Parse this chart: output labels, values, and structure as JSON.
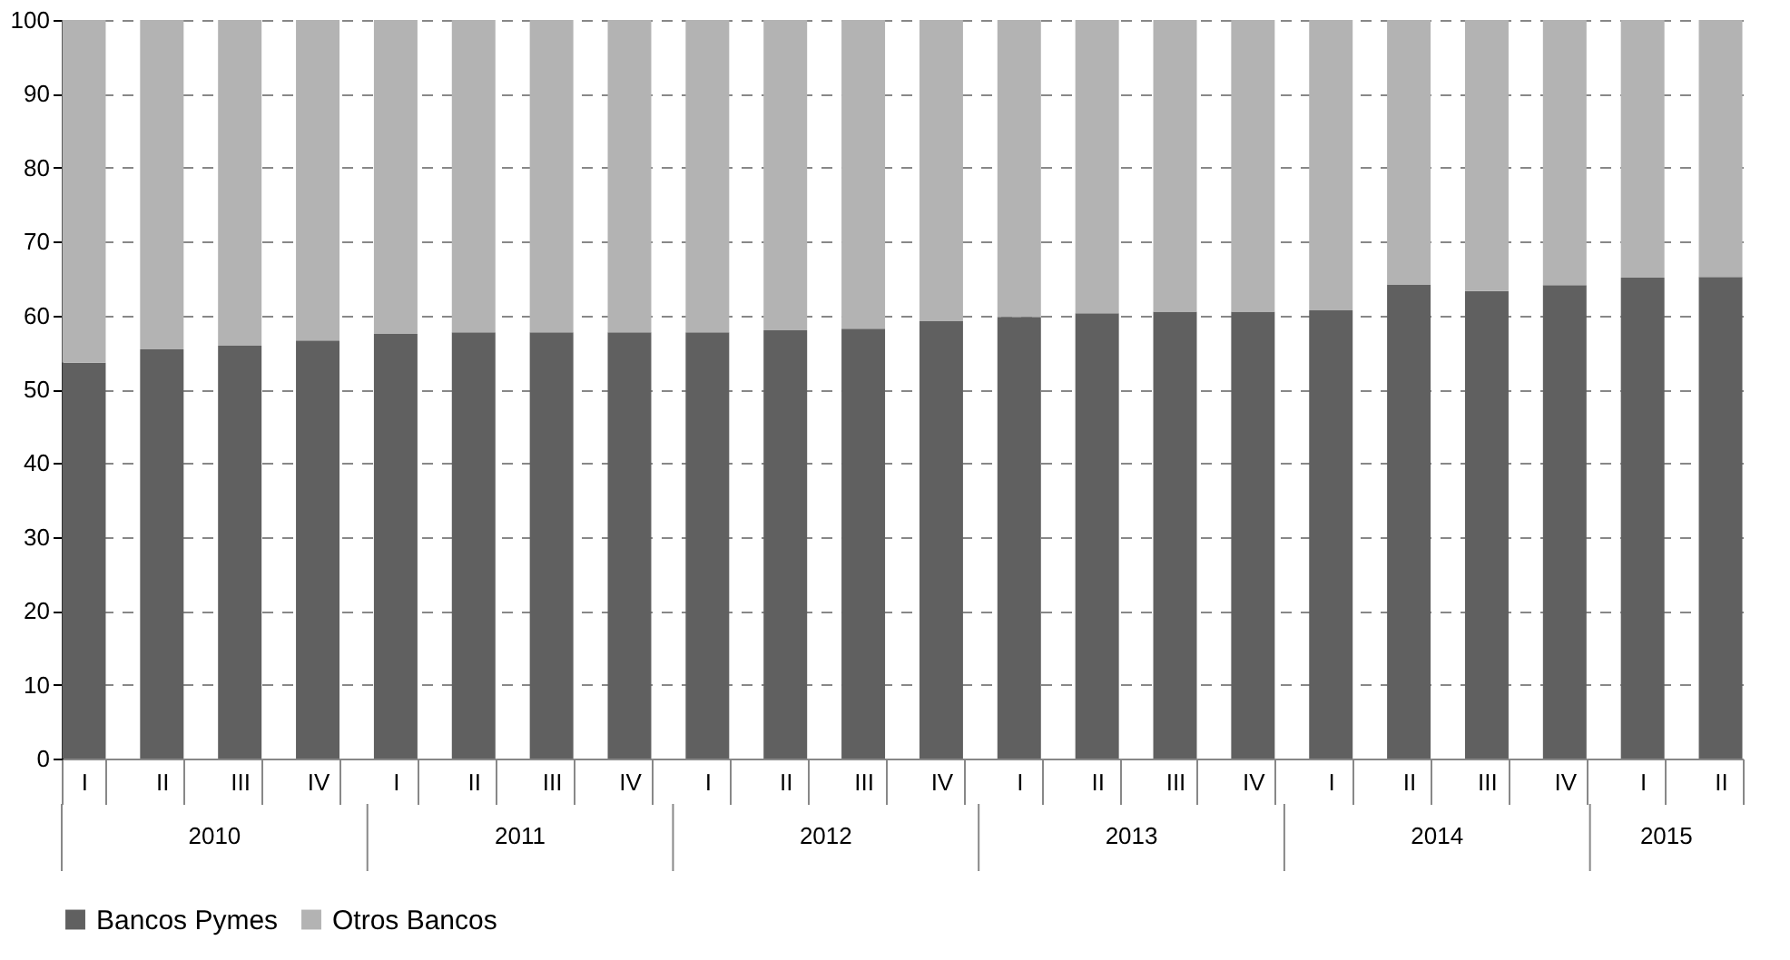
{
  "chart_data": {
    "type": "bar",
    "stacked": true,
    "categories": [
      "I",
      "II",
      "III",
      "IV",
      "I",
      "II",
      "III",
      "IV",
      "I",
      "II",
      "III",
      "IV",
      "I",
      "II",
      "III",
      "IV",
      "I",
      "II",
      "III",
      "IV",
      "I",
      "II"
    ],
    "series": [
      {
        "name": "Bancos Pymes",
        "color": "#606060",
        "values": [
          53.6,
          55.4,
          55.9,
          56.6,
          57.5,
          57.7,
          57.7,
          57.7,
          57.7,
          58.0,
          58.2,
          59.2,
          59.8,
          60.3,
          60.5,
          60.5,
          60.7,
          64.2,
          63.3,
          64.1,
          65.1,
          65.2
        ]
      },
      {
        "name": "Otros Bancos",
        "color": "#b3b3b3",
        "values": [
          46.4,
          44.6,
          44.1,
          43.4,
          42.5,
          42.3,
          42.3,
          42.3,
          42.3,
          42.0,
          41.8,
          40.8,
          40.2,
          39.7,
          39.5,
          39.5,
          39.3,
          35.8,
          36.7,
          35.9,
          34.9,
          34.8
        ]
      }
    ],
    "ylim": [
      0,
      100
    ],
    "yticks": [
      0,
      10,
      20,
      30,
      40,
      50,
      60,
      70,
      80,
      90,
      100
    ],
    "grid": "y",
    "legend": "bottom",
    "annotations": [
      "2010",
      "2011",
      "2012",
      "2013",
      "2014",
      "2015"
    ]
  }
}
